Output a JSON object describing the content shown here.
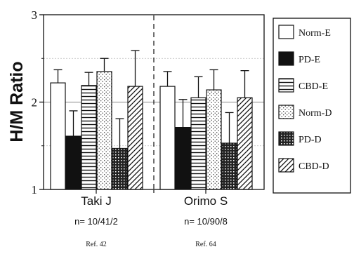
{
  "chart_data": {
    "type": "bar",
    "title": "",
    "xlabel": "",
    "ylabel": "H/M Ratio",
    "ylim": [
      1,
      3
    ],
    "yticks": [
      "1",
      "2",
      "3"
    ],
    "grid": true,
    "legend_position": "right",
    "categories": [
      "Taki J",
      "Orimo S"
    ],
    "category_notes": [
      {
        "n": "n= 10/41/2",
        "ref": "Ref. 42"
      },
      {
        "n": "n= 10/90/8",
        "ref": "Ref. 64"
      }
    ],
    "series": [
      {
        "name": "Norm-E",
        "pattern": "white",
        "values": [
          2.22,
          2.18
        ],
        "errors": [
          0.15,
          0.17
        ]
      },
      {
        "name": "PD-E",
        "pattern": "black",
        "values": [
          1.61,
          1.71
        ],
        "errors": [
          0.29,
          0.32
        ]
      },
      {
        "name": "CBD-E",
        "pattern": "hlines",
        "values": [
          2.19,
          2.05
        ],
        "errors": [
          0.15,
          0.24
        ]
      },
      {
        "name": "Norm-D",
        "pattern": "dots",
        "values": [
          2.35,
          2.14
        ],
        "errors": [
          0.15,
          0.23
        ]
      },
      {
        "name": "PD-D",
        "pattern": "crosshatch",
        "values": [
          1.47,
          1.53
        ],
        "errors": [
          0.34,
          0.35
        ]
      },
      {
        "name": "CBD-D",
        "pattern": "diagonal",
        "values": [
          2.18,
          2.05
        ],
        "errors": [
          0.41,
          0.31
        ]
      }
    ],
    "colors": {
      "ink": "#111111",
      "background": "#ffffff",
      "grid": "#bbbbbb"
    }
  }
}
